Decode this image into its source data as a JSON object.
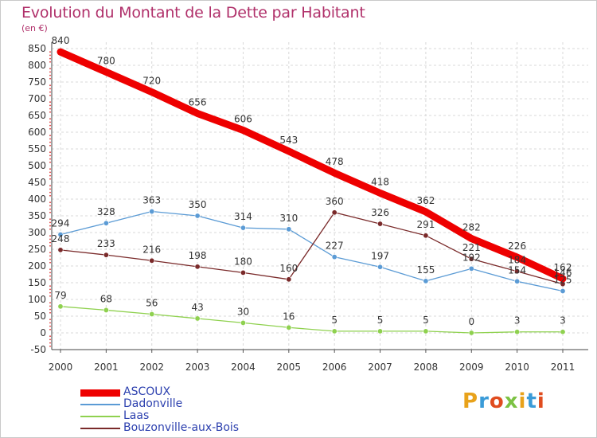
{
  "chart_data": {
    "type": "line",
    "title": "Evolution du Montant de la Dette par Habitant",
    "unit": "(en €)",
    "x": [
      "2000",
      "2001",
      "2002",
      "2003",
      "2004",
      "2005",
      "2006",
      "2007",
      "2008",
      "2009",
      "2010",
      "2011"
    ],
    "ylim": [
      -50,
      850
    ],
    "yticks": [
      -50,
      0,
      50,
      100,
      150,
      200,
      250,
      300,
      350,
      400,
      450,
      500,
      550,
      600,
      650,
      700,
      750,
      800,
      850
    ],
    "grid": true,
    "legend_position": "bottom-left",
    "series": [
      {
        "name": "ASCOUX",
        "color": "#ee0000",
        "values": [
          840,
          780,
          720,
          656,
          606,
          543,
          478,
          418,
          362,
          282,
          226,
          162
        ]
      },
      {
        "name": "Dadonville",
        "color": "#5b9bd5",
        "values": [
          294,
          328,
          363,
          350,
          314,
          310,
          227,
          197,
          155,
          192,
          154,
          125
        ]
      },
      {
        "name": "Laas",
        "color": "#8fd14f",
        "values": [
          79,
          68,
          56,
          43,
          30,
          16,
          5,
          5,
          5,
          0,
          3,
          3
        ]
      },
      {
        "name": "Bouzonville-aux-Bois",
        "color": "#7a2a2a",
        "values": [
          248,
          233,
          216,
          198,
          180,
          160,
          360,
          326,
          291,
          221,
          184,
          146
        ]
      }
    ]
  },
  "labels": [
    [
      "840",
      "780",
      "720",
      "656",
      "606",
      "543",
      "478",
      "418",
      "362",
      "282",
      "226",
      "162"
    ],
    [
      "294",
      "328",
      "363",
      "350",
      "314",
      "310",
      "227",
      "197",
      "155",
      "192",
      "154",
      "125"
    ],
    [
      "79",
      "68",
      "56",
      "43",
      "30",
      "16",
      "5",
      "5",
      "5",
      "0",
      "3",
      "3"
    ],
    [
      "248",
      "233",
      "216",
      "198",
      "180",
      "160",
      "360",
      "326",
      "291",
      "221",
      "184",
      "146"
    ]
  ],
  "logo": {
    "text": "Proxiti",
    "colors": [
      "#e8a21b",
      "#3a9bd8",
      "#e04c1f",
      "#7cc243",
      "#e8a21b",
      "#3a9bd8",
      "#e04c1f"
    ]
  }
}
